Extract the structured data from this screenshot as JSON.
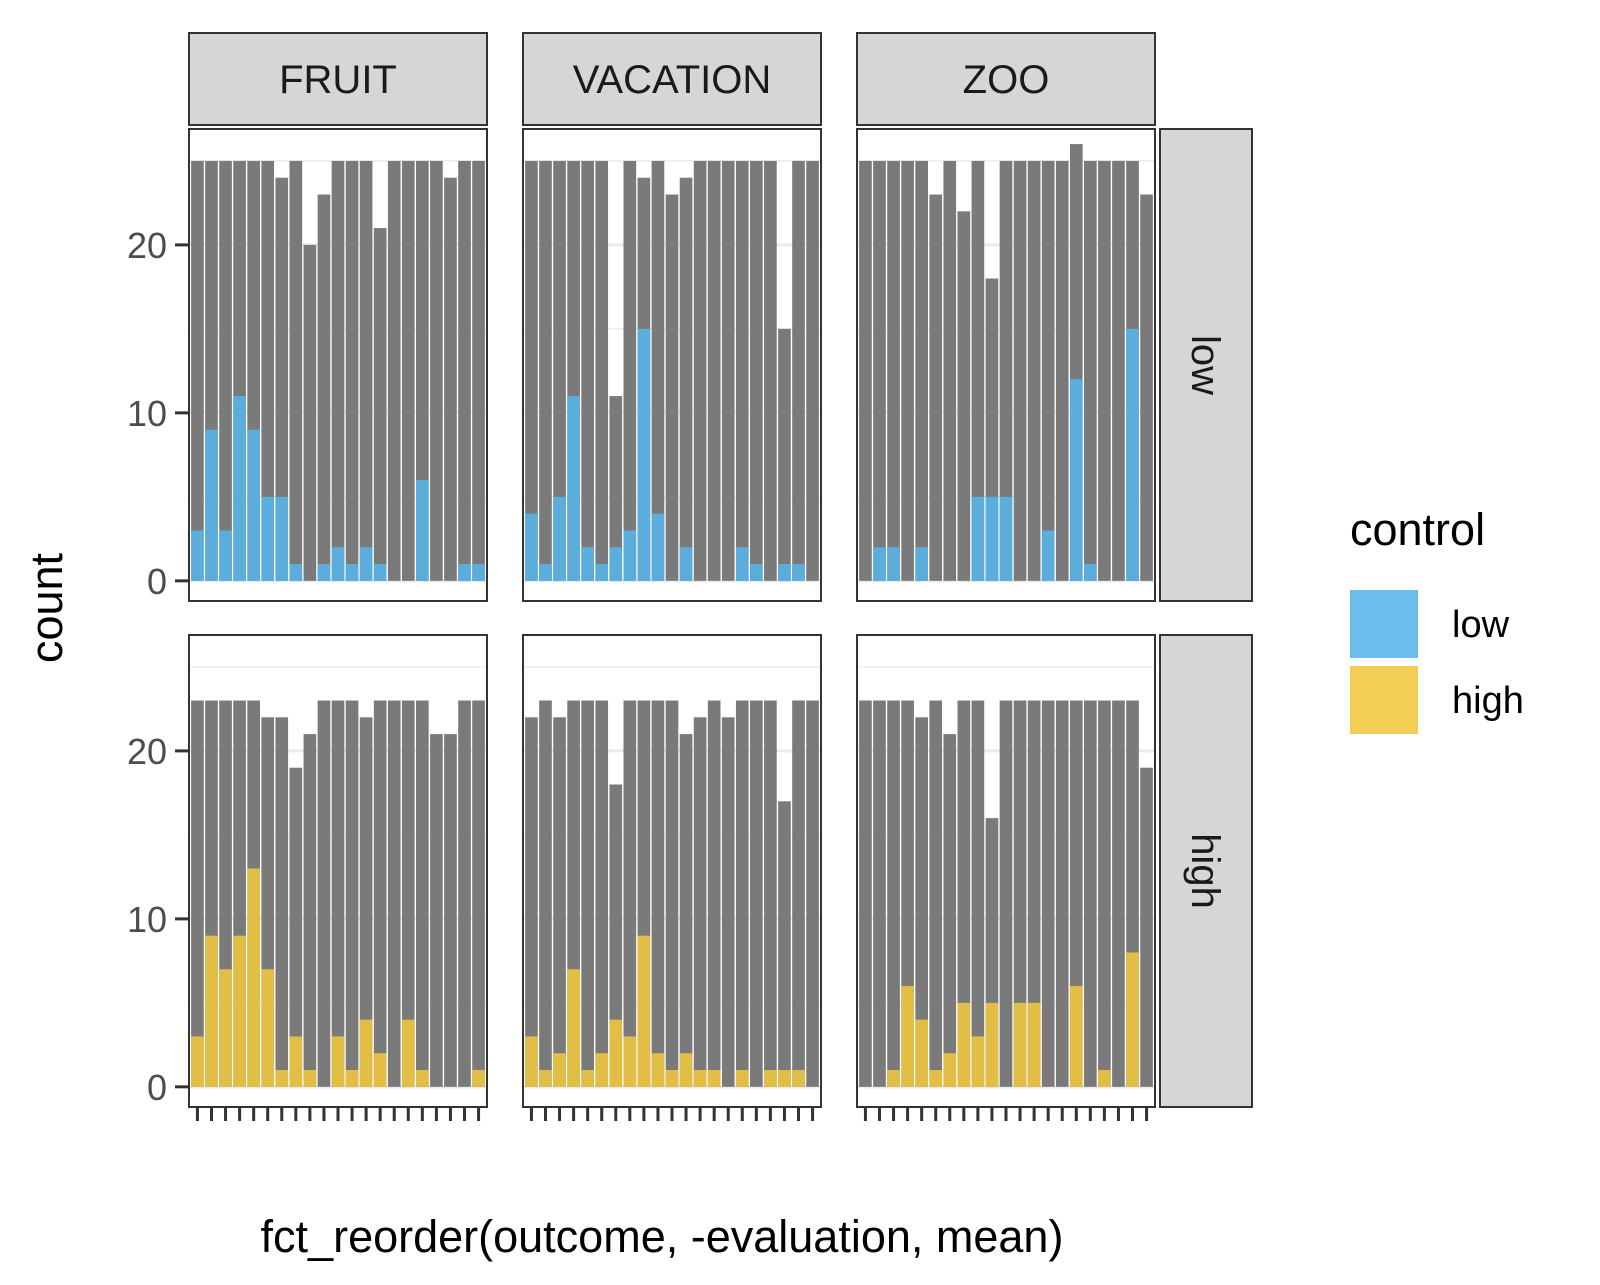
{
  "chart_data": {
    "type": "bar",
    "xlabel": "fct_reorder(outcome, -evaluation, mean)",
    "ylabel": "count",
    "col_facets": [
      "FRUIT",
      "VACATION",
      "ZOO"
    ],
    "row_facets": [
      "low",
      "high"
    ],
    "ylim": [
      -1.2,
      26.9
    ],
    "y_ticks": [
      0,
      10,
      20
    ],
    "grid": true,
    "legend": {
      "title": "control",
      "position": "right",
      "entries": [
        {
          "label": "low",
          "color": "#56B4E9"
        },
        {
          "label": "high",
          "color": "#F0C83C"
        }
      ]
    },
    "background_bar_color": "#7a7a7a",
    "panels": [
      {
        "col": "FRUIT",
        "row": "low",
        "fill": "#56B4E9",
        "totals": [
          25,
          25,
          25,
          25,
          25,
          25,
          24,
          25,
          20,
          23,
          25,
          25,
          25,
          21,
          25,
          25,
          25,
          25,
          24,
          25,
          25
        ],
        "values": [
          3,
          9,
          3,
          11,
          9,
          5,
          5,
          1,
          0,
          1,
          2,
          1,
          2,
          1,
          0,
          0,
          6,
          0,
          0,
          1,
          1
        ]
      },
      {
        "col": "VACATION",
        "row": "low",
        "fill": "#56B4E9",
        "totals": [
          25,
          25,
          25,
          25,
          25,
          25,
          11,
          25,
          24,
          25,
          23,
          24,
          25,
          25,
          25,
          25,
          25,
          25,
          15,
          25,
          25
        ],
        "values": [
          4,
          1,
          5,
          11,
          2,
          1,
          2,
          3,
          15,
          4,
          0,
          2,
          0,
          0,
          0,
          2,
          1,
          0,
          1,
          1,
          0
        ]
      },
      {
        "col": "ZOO",
        "row": "low",
        "fill": "#56B4E9",
        "totals": [
          25,
          25,
          25,
          25,
          25,
          23,
          25,
          22,
          25,
          18,
          25,
          25,
          25,
          25,
          25,
          26,
          25,
          25,
          25,
          25,
          23
        ],
        "values": [
          0,
          2,
          2,
          0,
          2,
          0,
          0,
          0,
          5,
          5,
          5,
          0,
          0,
          3,
          0,
          12,
          1,
          0,
          0,
          15,
          0
        ]
      },
      {
        "col": "FRUIT",
        "row": "high",
        "fill": "#F0C83C",
        "totals": [
          23,
          23,
          23,
          23,
          23,
          22,
          22,
          19,
          21,
          23,
          23,
          23,
          22,
          23,
          23,
          23,
          23,
          21,
          21,
          23,
          23
        ],
        "values": [
          3,
          9,
          7,
          9,
          13,
          7,
          1,
          3,
          1,
          0,
          3,
          1,
          4,
          2,
          0,
          4,
          1,
          0,
          0,
          0,
          1
        ]
      },
      {
        "col": "VACATION",
        "row": "high",
        "fill": "#F0C83C",
        "totals": [
          22,
          23,
          22,
          23,
          23,
          23,
          18,
          23,
          23,
          23,
          23,
          21,
          22,
          23,
          22,
          23,
          23,
          23,
          17,
          23,
          23
        ],
        "values": [
          3,
          1,
          2,
          7,
          1,
          2,
          4,
          3,
          9,
          2,
          1,
          2,
          1,
          1,
          0,
          1,
          0,
          1,
          1,
          1,
          0
        ]
      },
      {
        "col": "ZOO",
        "row": "high",
        "fill": "#F0C83C",
        "totals": [
          23,
          23,
          23,
          23,
          22,
          23,
          21,
          23,
          23,
          16,
          23,
          23,
          23,
          23,
          23,
          23,
          23,
          23,
          23,
          23,
          19
        ],
        "values": [
          0,
          0,
          1,
          6,
          4,
          1,
          2,
          5,
          3,
          5,
          0,
          5,
          5,
          0,
          0,
          6,
          0,
          1,
          0,
          8,
          0
        ]
      }
    ]
  }
}
